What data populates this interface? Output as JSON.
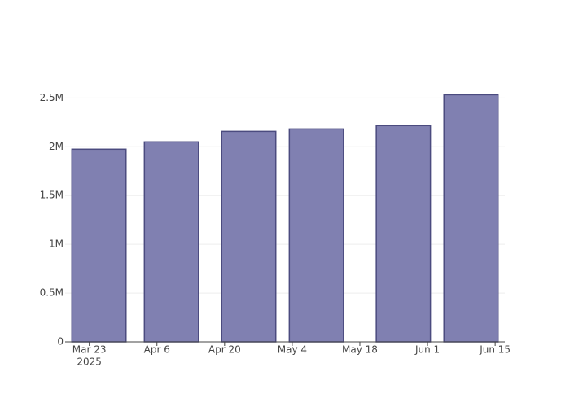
{
  "chart_data": {
    "type": "bar",
    "x": [
      "2025-03-25",
      "2025-04-09",
      "2025-04-25",
      "2025-05-09",
      "2025-05-27",
      "2025-06-10"
    ],
    "values": [
      1975000,
      2050000,
      2158000,
      2183000,
      2217000,
      2533000
    ],
    "color": "#8080b1",
    "edge_color": "#4b4b7f",
    "xlim": [
      "2025-03-18",
      "2025-06-17"
    ],
    "xticks": [
      {
        "value": "2025-03-23",
        "label": "Mar 23"
      },
      {
        "value": "2025-04-06",
        "label": "Apr 6"
      },
      {
        "value": "2025-04-20",
        "label": "Apr 20"
      },
      {
        "value": "2025-05-04",
        "label": "May 4"
      },
      {
        "value": "2025-05-18",
        "label": "May 18"
      },
      {
        "value": "2025-06-01",
        "label": "Jun 1"
      },
      {
        "value": "2025-06-15",
        "label": "Jun 15"
      }
    ],
    "x_year_label": "2025",
    "ylim": [
      0,
      2670000
    ],
    "yticks": [
      0,
      {
        "value": 500000,
        "label": "0.5M"
      },
      {
        "value": 1000000,
        "label": "1M"
      },
      {
        "value": 1500000,
        "label": "1.5M"
      },
      {
        "value": 2000000,
        "label": "2M"
      },
      {
        "value": 2500000,
        "label": "2.5M"
      }
    ],
    "grid": true
  }
}
